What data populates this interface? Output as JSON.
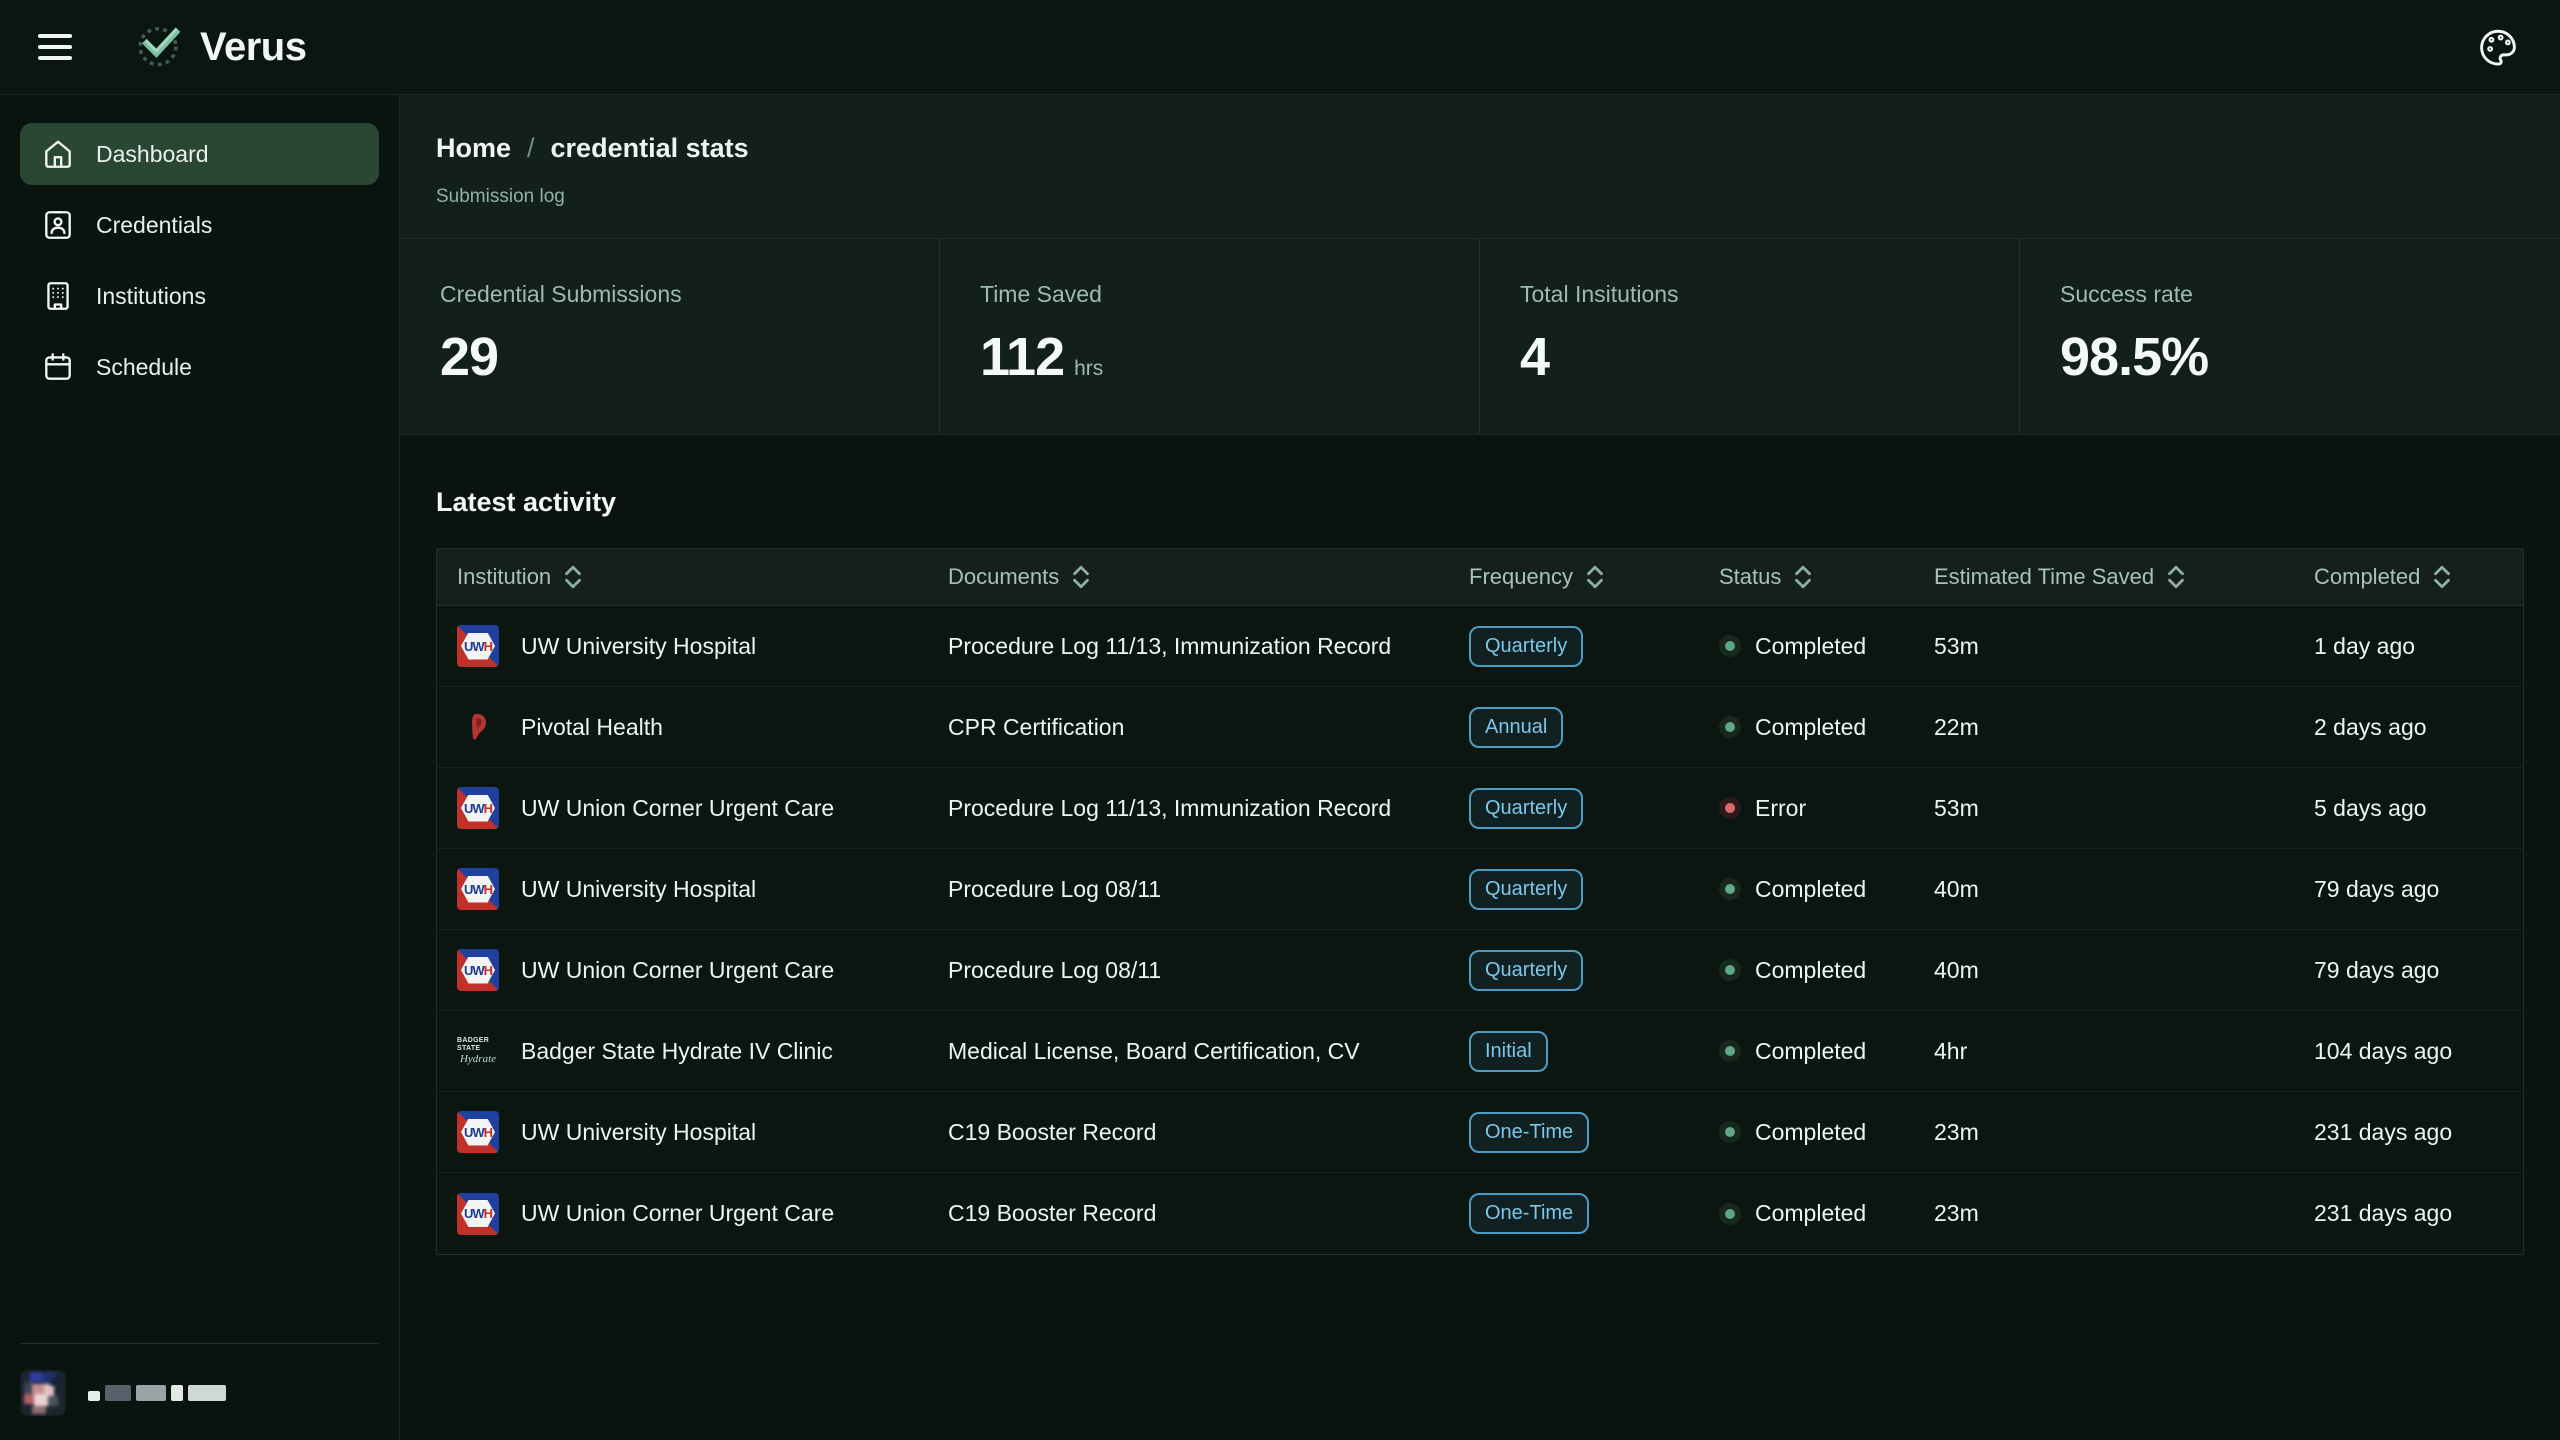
{
  "topbar": {
    "app_title": "Verus",
    "icons": {
      "menu": "hamburger-icon",
      "logo": "check-circle-logo-icon",
      "theme": "palette-icon"
    }
  },
  "sidebar": {
    "items": [
      {
        "label": "Dashboard",
        "icon": "home-icon",
        "active": true
      },
      {
        "label": "Credentials",
        "icon": "id-badge-icon",
        "active": false
      },
      {
        "label": "Institutions",
        "icon": "building-icon",
        "active": false
      },
      {
        "label": "Schedule",
        "icon": "calendar-icon",
        "active": false
      }
    ]
  },
  "breadcrumb": {
    "home": "Home",
    "separator": "/",
    "current": "credential stats",
    "subtitle": "Submission log"
  },
  "stats": [
    {
      "label": "Credential Submissions",
      "value": "29"
    },
    {
      "label": "Time Saved",
      "value": "112",
      "suffix": "hrs"
    },
    {
      "label": "Total Insitutions",
      "value": "4"
    },
    {
      "label": "Success rate",
      "value": "98.5%"
    }
  ],
  "activity": {
    "title": "Latest activity",
    "columns": [
      "Institution",
      "Documents",
      "Frequency",
      "Status",
      "Estimated Time Saved",
      "Completed"
    ],
    "rows": [
      {
        "institution": "UW University Hospital",
        "logo": "uwh",
        "documents": "Procedure Log 11/13, Immunization Record",
        "frequency": "Quarterly",
        "status": "Completed",
        "status_type": "success",
        "time_saved": "53m",
        "completed": "1 day ago"
      },
      {
        "institution": "Pivotal Health",
        "logo": "pivotal",
        "documents": "CPR Certification",
        "frequency": "Annual",
        "status": "Completed",
        "status_type": "success",
        "time_saved": "22m",
        "completed": "2 days ago"
      },
      {
        "institution": "UW Union Corner Urgent Care",
        "logo": "uwh",
        "documents": "Procedure Log 11/13, Immunization Record",
        "frequency": "Quarterly",
        "status": "Error",
        "status_type": "error",
        "time_saved": "53m",
        "completed": "5 days ago"
      },
      {
        "institution": "UW University Hospital",
        "logo": "uwh",
        "documents": "Procedure Log 08/11",
        "frequency": "Quarterly",
        "status": "Completed",
        "status_type": "success",
        "time_saved": "40m",
        "completed": "79 days ago"
      },
      {
        "institution": "UW Union Corner Urgent Care",
        "logo": "uwh",
        "documents": "Procedure Log 08/11",
        "frequency": "Quarterly",
        "status": "Completed",
        "status_type": "success",
        "time_saved": "40m",
        "completed": "79 days ago"
      },
      {
        "institution": "Badger State Hydrate IV Clinic",
        "logo": "badger",
        "documents": "Medical License, Board Certification, CV",
        "frequency": "Initial",
        "status": "Completed",
        "status_type": "success",
        "time_saved": "4hr",
        "completed": "104 days ago"
      },
      {
        "institution": "UW University Hospital",
        "logo": "uwh",
        "documents": "C19 Booster Record",
        "frequency": "One-Time",
        "status": "Completed",
        "status_type": "success",
        "time_saved": "23m",
        "completed": "231 days ago"
      },
      {
        "institution": "UW Union Corner Urgent Care",
        "logo": "uwh",
        "documents": "C19 Booster Record",
        "frequency": "One-Time",
        "status": "Completed",
        "status_type": "success",
        "time_saved": "23m",
        "completed": "231 days ago"
      }
    ]
  },
  "colors": {
    "sidebar_active": "#2a4733",
    "badge_blue_text": "#7ec6ea",
    "badge_blue_border": "#4d9cc4",
    "status_success": "#5fa68c",
    "status_error": "#d96d6d",
    "brand_check": "#7dbfa2"
  }
}
